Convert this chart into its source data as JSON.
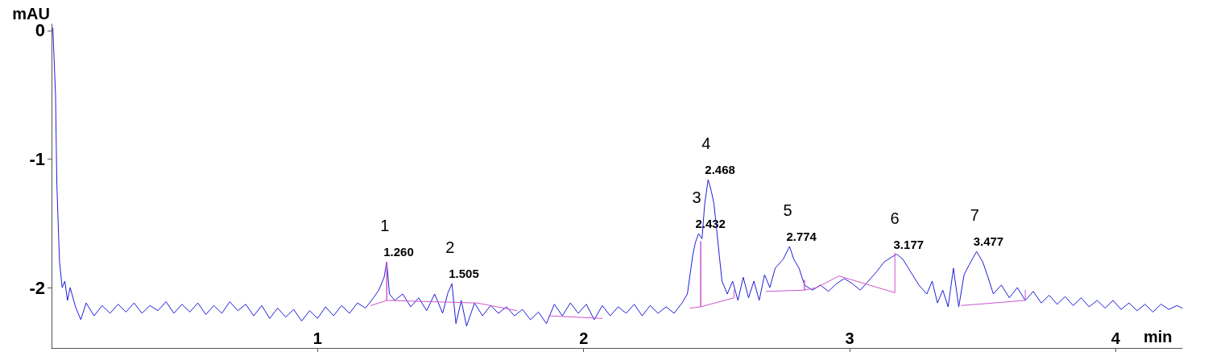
{
  "chart_data": {
    "type": "line",
    "xlabel": "min",
    "ylabel": "mAU",
    "xlim": [
      0,
      4.25
    ],
    "xticks": [
      1,
      2,
      3,
      4
    ],
    "ylim": [
      -2.47,
      0.05
    ],
    "yticks": [
      0,
      -1,
      -2
    ],
    "grid": false,
    "marker": "none",
    "line_style": "solid",
    "series": [
      {
        "color": "#1f1fd6",
        "x": [
          0.005,
          0.015,
          0.02,
          0.03,
          0.04,
          0.05,
          0.06,
          0.07,
          0.09,
          0.11,
          0.13,
          0.16,
          0.19,
          0.22,
          0.25,
          0.28,
          0.31,
          0.34,
          0.37,
          0.4,
          0.43,
          0.46,
          0.49,
          0.52,
          0.55,
          0.58,
          0.61,
          0.64,
          0.67,
          0.7,
          0.73,
          0.76,
          0.79,
          0.82,
          0.85,
          0.88,
          0.91,
          0.94,
          0.97,
          1.0,
          1.03,
          1.06,
          1.09,
          1.12,
          1.15,
          1.18,
          1.21,
          1.23,
          1.25,
          1.26,
          1.27,
          1.29,
          1.32,
          1.35,
          1.38,
          1.41,
          1.44,
          1.47,
          1.49,
          1.505,
          1.52,
          1.54,
          1.56,
          1.59,
          1.62,
          1.65,
          1.68,
          1.71,
          1.74,
          1.77,
          1.8,
          1.83,
          1.86,
          1.89,
          1.92,
          1.95,
          1.98,
          2.01,
          2.04,
          2.07,
          2.1,
          2.13,
          2.16,
          2.19,
          2.22,
          2.25,
          2.28,
          2.31,
          2.34,
          2.37,
          2.39,
          2.4,
          2.41,
          2.42,
          2.432,
          2.445,
          2.455,
          2.468,
          2.48,
          2.49,
          2.5,
          2.51,
          2.52,
          2.54,
          2.56,
          2.58,
          2.6,
          2.62,
          2.64,
          2.66,
          2.68,
          2.7,
          2.72,
          2.75,
          2.774,
          2.79,
          2.81,
          2.83,
          2.86,
          2.89,
          2.92,
          2.95,
          2.98,
          3.01,
          3.04,
          3.07,
          3.1,
          3.13,
          3.16,
          3.177,
          3.2,
          3.23,
          3.26,
          3.29,
          3.31,
          3.33,
          3.35,
          3.37,
          3.39,
          3.41,
          3.43,
          3.45,
          3.477,
          3.5,
          3.52,
          3.54,
          3.57,
          3.6,
          3.63,
          3.66,
          3.69,
          3.72,
          3.75,
          3.78,
          3.81,
          3.84,
          3.87,
          3.9,
          3.93,
          3.96,
          3.99,
          4.02,
          4.05,
          4.08,
          4.11,
          4.14,
          4.17,
          4.2,
          4.23,
          4.25
        ],
        "values": [
          0.02,
          -0.5,
          -1.2,
          -1.8,
          -2.0,
          -1.95,
          -2.1,
          -2.0,
          -2.15,
          -2.25,
          -2.12,
          -2.22,
          -2.14,
          -2.2,
          -2.13,
          -2.19,
          -2.12,
          -2.2,
          -2.14,
          -2.18,
          -2.11,
          -2.2,
          -2.13,
          -2.19,
          -2.12,
          -2.21,
          -2.14,
          -2.2,
          -2.11,
          -2.18,
          -2.13,
          -2.22,
          -2.14,
          -2.24,
          -2.16,
          -2.23,
          -2.17,
          -2.26,
          -2.18,
          -2.24,
          -2.15,
          -2.22,
          -2.14,
          -2.2,
          -2.12,
          -2.16,
          -2.08,
          -2.02,
          -1.92,
          -1.8,
          -2.05,
          -2.1,
          -2.05,
          -2.15,
          -2.08,
          -2.18,
          -2.05,
          -2.2,
          -2.04,
          -1.97,
          -2.28,
          -2.1,
          -2.3,
          -2.12,
          -2.22,
          -2.14,
          -2.2,
          -2.15,
          -2.22,
          -2.17,
          -2.25,
          -2.19,
          -2.28,
          -2.13,
          -2.22,
          -2.12,
          -2.2,
          -2.13,
          -2.25,
          -2.14,
          -2.22,
          -2.15,
          -2.2,
          -2.13,
          -2.22,
          -2.14,
          -2.2,
          -2.15,
          -2.2,
          -2.12,
          -2.05,
          -1.9,
          -1.75,
          -1.65,
          -1.58,
          -1.62,
          -1.35,
          -1.16,
          -1.25,
          -1.35,
          -1.55,
          -1.75,
          -1.95,
          -2.05,
          -1.95,
          -2.1,
          -1.92,
          -2.08,
          -1.95,
          -2.1,
          -1.9,
          -2.0,
          -1.85,
          -1.78,
          -1.68,
          -1.78,
          -1.85,
          -1.98,
          -2.02,
          -1.98,
          -2.03,
          -1.97,
          -1.93,
          -1.97,
          -2.02,
          -1.95,
          -1.88,
          -1.8,
          -1.76,
          -1.74,
          -1.78,
          -1.88,
          -1.98,
          -2.05,
          -1.95,
          -2.12,
          -2.02,
          -2.15,
          -1.85,
          -2.15,
          -1.9,
          -1.82,
          -1.72,
          -1.8,
          -1.92,
          -2.05,
          -1.98,
          -2.08,
          -2.0,
          -2.1,
          -2.03,
          -2.12,
          -2.06,
          -2.13,
          -2.07,
          -2.14,
          -2.08,
          -2.15,
          -2.1,
          -2.16,
          -2.1,
          -2.17,
          -2.12,
          -2.18,
          -2.13,
          -2.19,
          -2.13,
          -2.17,
          -2.14,
          -2.16
        ]
      },
      {
        "color": "#cc55cc",
        "x": [
          1.2,
          1.26,
          1.26,
          1.26,
          1.6,
          1.75
        ],
        "values": [
          -2.14,
          -2.1,
          -1.8,
          -2.1,
          -2.12,
          -2.18
        ]
      },
      {
        "color": "#cc55cc",
        "x": [
          1.87,
          2.07
        ],
        "values": [
          -2.22,
          -2.24
        ]
      },
      {
        "color": "#cc55cc",
        "x": [
          2.4,
          2.44,
          2.44,
          2.44,
          2.565,
          2.565
        ],
        "values": [
          -2.16,
          -2.15,
          -1.64,
          -2.15,
          -2.08,
          -2.02
        ]
      },
      {
        "color": "#cc55cc",
        "x": [
          2.686,
          2.83,
          2.83,
          2.83,
          2.876,
          2.96,
          3.17,
          3.17
        ],
        "values": [
          -2.03,
          -2.02,
          -1.94,
          -2.02,
          -2.0,
          -1.91,
          -2.04,
          -1.73
        ]
      },
      {
        "color": "#cc55cc",
        "x": [
          3.42,
          3.66,
          3.66
        ],
        "values": [
          -2.14,
          -2.1,
          -2.02
        ]
      }
    ],
    "annotations": [
      {
        "text": "1.260",
        "x": 1.26,
        "y": -1.8
      },
      {
        "text": "1",
        "x": 1.26,
        "y": -1.8
      },
      {
        "text": "1.505",
        "x": 1.505,
        "y": -1.97
      },
      {
        "text": "2",
        "x": 1.505,
        "y": -1.97
      },
      {
        "text": "2.432",
        "x": 2.432,
        "y": -1.58
      },
      {
        "text": "3",
        "x": 2.432,
        "y": -1.58
      },
      {
        "text": "2.468",
        "x": 2.468,
        "y": -1.16
      },
      {
        "text": "4",
        "x": 2.468,
        "y": -1.16
      },
      {
        "text": "2.774",
        "x": 2.774,
        "y": -1.68
      },
      {
        "text": "5",
        "x": 2.774,
        "y": -1.68
      },
      {
        "text": "3.177",
        "x": 3.177,
        "y": -1.74
      },
      {
        "text": "6",
        "x": 3.177,
        "y": -1.74
      },
      {
        "text": "3.477",
        "x": 3.477,
        "y": -1.72
      },
      {
        "text": "7",
        "x": 3.477,
        "y": -1.72
      }
    ]
  }
}
